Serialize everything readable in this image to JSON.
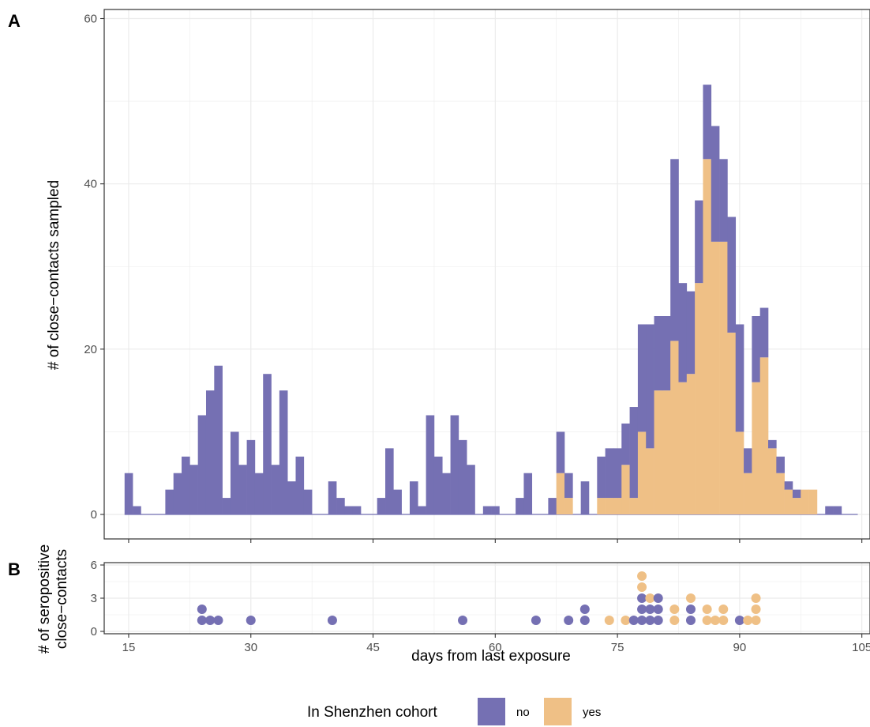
{
  "colors": {
    "no": "#7570b3",
    "yes": "#efc086",
    "grid": "#ebebeb",
    "panel_border": "#333333"
  },
  "panels": {
    "a_label": "A",
    "b_label": "B"
  },
  "chart_data": [
    {
      "panel": "A",
      "type": "bar",
      "stacked": true,
      "xlabel": "days from last exposure",
      "ylabel": "# of close−contacts sampled",
      "xlim": [
        12,
        106
      ],
      "ylim": [
        0,
        60
      ],
      "xticks": [
        15,
        30,
        45,
        60,
        75,
        90,
        105
      ],
      "yticks": [
        0,
        20,
        40,
        60
      ],
      "x": [
        15,
        16,
        17,
        18,
        19,
        20,
        21,
        22,
        23,
        24,
        25,
        26,
        27,
        28,
        29,
        30,
        31,
        32,
        33,
        34,
        35,
        36,
        37,
        38,
        39,
        40,
        41,
        42,
        43,
        44,
        45,
        46,
        47,
        48,
        49,
        50,
        51,
        52,
        53,
        54,
        55,
        56,
        57,
        58,
        59,
        60,
        61,
        62,
        63,
        64,
        65,
        66,
        67,
        68,
        69,
        70,
        71,
        72,
        73,
        74,
        75,
        76,
        77,
        78,
        79,
        80,
        81,
        82,
        83,
        84,
        85,
        86,
        87,
        88,
        89,
        90,
        91,
        92,
        93,
        94,
        95,
        96,
        97,
        98,
        99,
        100,
        101,
        102,
        103,
        104
      ],
      "series": [
        {
          "name": "no",
          "values": [
            5,
            1,
            0,
            0,
            0,
            3,
            5,
            7,
            6,
            12,
            15,
            18,
            2,
            10,
            6,
            9,
            5,
            17,
            6,
            15,
            4,
            7,
            3,
            0,
            0,
            4,
            2,
            1,
            1,
            0,
            0,
            2,
            8,
            3,
            0,
            4,
            1,
            12,
            7,
            5,
            12,
            9,
            6,
            0,
            1,
            1,
            0,
            0,
            2,
            5,
            0,
            0,
            2,
            5,
            3,
            0,
            4,
            0,
            5,
            6,
            6,
            5,
            11,
            13,
            15,
            9,
            9,
            22,
            12,
            10,
            10,
            9,
            14,
            10,
            14,
            13,
            3,
            8,
            6,
            1,
            2,
            1,
            1,
            0,
            0,
            0,
            1,
            1,
            0,
            0
          ]
        },
        {
          "name": "yes",
          "values": [
            0,
            0,
            0,
            0,
            0,
            0,
            0,
            0,
            0,
            0,
            0,
            0,
            0,
            0,
            0,
            0,
            0,
            0,
            0,
            0,
            0,
            0,
            0,
            0,
            0,
            0,
            0,
            0,
            0,
            0,
            0,
            0,
            0,
            0,
            0,
            0,
            0,
            0,
            0,
            0,
            0,
            0,
            0,
            0,
            0,
            0,
            0,
            0,
            0,
            0,
            0,
            0,
            0,
            5,
            2,
            0,
            0,
            0,
            2,
            2,
            2,
            6,
            2,
            10,
            8,
            15,
            15,
            21,
            16,
            17,
            28,
            43,
            33,
            33,
            22,
            10,
            5,
            16,
            19,
            8,
            5,
            3,
            2,
            3,
            3,
            0,
            0,
            0,
            0,
            0
          ]
        }
      ]
    },
    {
      "panel": "B",
      "type": "scatter",
      "ylabel": "# of seropositive close−contacts",
      "ylabel_lines": [
        "# of seropositive",
        "close−contacts"
      ],
      "xlim": [
        12,
        106
      ],
      "ylim": [
        -0.5,
        7
      ],
      "yticks": [
        0,
        3,
        6
      ],
      "points": [
        {
          "x": 24,
          "y": 1,
          "group": "no"
        },
        {
          "x": 24,
          "y": 2,
          "group": "no"
        },
        {
          "x": 25,
          "y": 1,
          "group": "no"
        },
        {
          "x": 26,
          "y": 1,
          "group": "no"
        },
        {
          "x": 30,
          "y": 1,
          "group": "no"
        },
        {
          "x": 40,
          "y": 1,
          "group": "no"
        },
        {
          "x": 56,
          "y": 1,
          "group": "no"
        },
        {
          "x": 65,
          "y": 1,
          "group": "no"
        },
        {
          "x": 69,
          "y": 1,
          "group": "no"
        },
        {
          "x": 71,
          "y": 1,
          "group": "no"
        },
        {
          "x": 71,
          "y": 2,
          "group": "no"
        },
        {
          "x": 74,
          "y": 1,
          "group": "yes"
        },
        {
          "x": 76,
          "y": 1,
          "group": "yes"
        },
        {
          "x": 77,
          "y": 1,
          "group": "no"
        },
        {
          "x": 78,
          "y": 1,
          "group": "no"
        },
        {
          "x": 78,
          "y": 2,
          "group": "no"
        },
        {
          "x": 78,
          "y": 3,
          "group": "no"
        },
        {
          "x": 78,
          "y": 4,
          "group": "yes"
        },
        {
          "x": 78,
          "y": 5,
          "group": "yes"
        },
        {
          "x": 79,
          "y": 1,
          "group": "no"
        },
        {
          "x": 79,
          "y": 2,
          "group": "no"
        },
        {
          "x": 79,
          "y": 3,
          "group": "yes"
        },
        {
          "x": 80,
          "y": 1,
          "group": "no"
        },
        {
          "x": 80,
          "y": 2,
          "group": "no"
        },
        {
          "x": 80,
          "y": 3,
          "group": "no"
        },
        {
          "x": 82,
          "y": 1,
          "group": "yes"
        },
        {
          "x": 82,
          "y": 2,
          "group": "yes"
        },
        {
          "x": 84,
          "y": 1,
          "group": "no"
        },
        {
          "x": 84,
          "y": 2,
          "group": "no"
        },
        {
          "x": 84,
          "y": 3,
          "group": "yes"
        },
        {
          "x": 86,
          "y": 1,
          "group": "yes"
        },
        {
          "x": 86,
          "y": 2,
          "group": "yes"
        },
        {
          "x": 87,
          "y": 1,
          "group": "yes"
        },
        {
          "x": 88,
          "y": 1,
          "group": "yes"
        },
        {
          "x": 88,
          "y": 2,
          "group": "yes"
        },
        {
          "x": 90,
          "y": 1,
          "group": "no"
        },
        {
          "x": 91,
          "y": 1,
          "group": "yes"
        },
        {
          "x": 92,
          "y": 1,
          "group": "yes"
        },
        {
          "x": 92,
          "y": 2,
          "group": "yes"
        },
        {
          "x": 92,
          "y": 3,
          "group": "yes"
        }
      ]
    }
  ],
  "legend": {
    "title": "In Shenzhen cohort",
    "placement": "bottom",
    "items": [
      {
        "label": "no",
        "color": "#7570b3"
      },
      {
        "label": "yes",
        "color": "#efc086"
      }
    ]
  }
}
